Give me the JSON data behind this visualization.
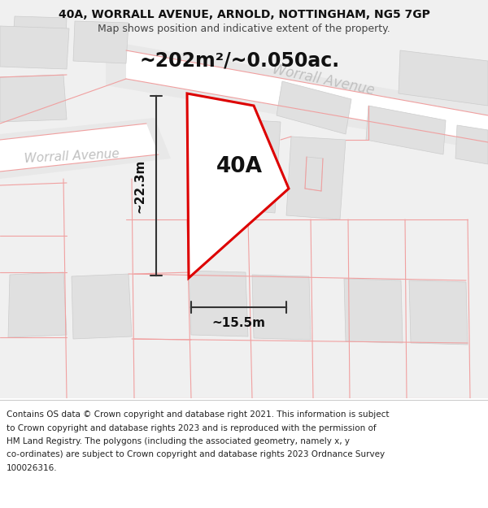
{
  "title_line1": "40A, WORRALL AVENUE, ARNOLD, NOTTINGHAM, NG5 7GP",
  "title_line2": "Map shows position and indicative extent of the property.",
  "area_label": "~202m²/~0.050ac.",
  "property_label": "40A",
  "dim_height": "~22.3m",
  "dim_width": "~15.5m",
  "street_label_1": "Worrall Avenue",
  "street_label_2": "Worrall Avenue",
  "footer_lines": [
    "Contains OS data © Crown copyright and database right 2021. This information is subject",
    "to Crown copyright and database rights 2023 and is reproduced with the permission of",
    "HM Land Registry. The polygons (including the associated geometry, namely x, y",
    "co-ordinates) are subject to Crown copyright and database rights 2023 Ordnance Survey",
    "100026316."
  ],
  "bg_color": "#f0f0f0",
  "road_color": "#ffffff",
  "plot_outline_color": "#dd0000",
  "plot_fill_color": "#ffffff",
  "building_color": "#e0e0e0",
  "road_line_color": "#f0a0a0",
  "dim_line_color": "#333333",
  "street_text_color": "#c0c0c0",
  "footer_bg": "#ffffff"
}
